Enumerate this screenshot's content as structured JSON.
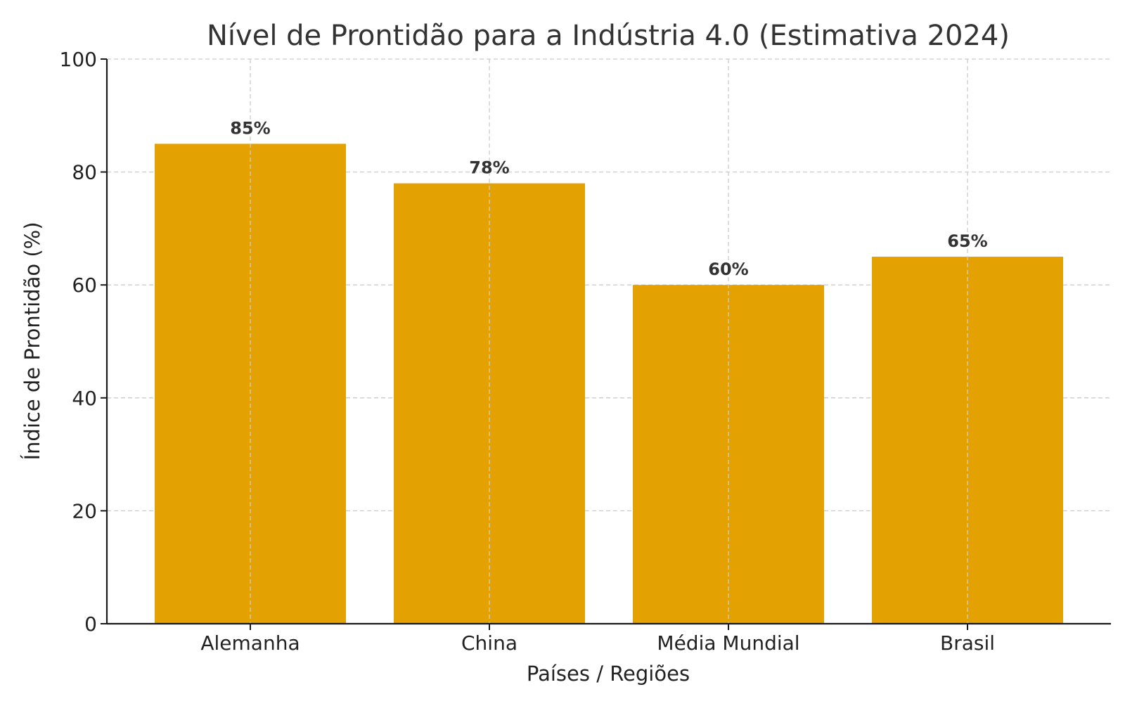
{
  "chart_data": {
    "type": "bar",
    "title": "Nível de Prontidão para a Indústria 4.0 (Estimativa 2024)",
    "xlabel": "Países / Regiões",
    "ylabel": "Índice de Prontidão (%)",
    "categories": [
      "Alemanha",
      "China",
      "Média Mundial",
      "Brasil"
    ],
    "values": [
      85,
      78,
      60,
      65
    ],
    "data_labels": [
      "85%",
      "78%",
      "60%",
      "65%"
    ],
    "ylim": [
      0,
      100
    ],
    "yticks": [
      0,
      20,
      40,
      60,
      80,
      100
    ],
    "ytick_labels": [
      "0",
      "20",
      "40",
      "60",
      "80",
      "100"
    ],
    "grid": true,
    "bar_color": "#E3A102"
  }
}
